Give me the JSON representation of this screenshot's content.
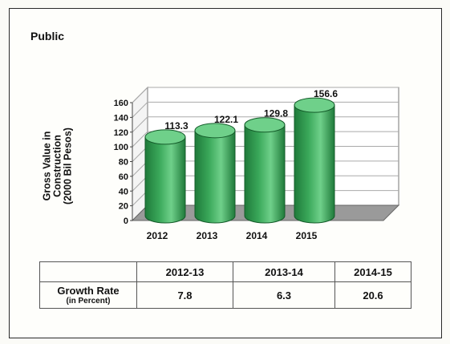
{
  "heading": "Public",
  "chart_data": {
    "type": "bar",
    "style": "3d-cylinder",
    "title": "",
    "ylabel": [
      "Gross Value in",
      "Construction",
      "(2000 Bil Pesos)"
    ],
    "xlabel": "",
    "categories": [
      "2012",
      "2013",
      "2014",
      "2015"
    ],
    "values": [
      113.3,
      122.1,
      129.8,
      156.6
    ],
    "value_labels": [
      "113.3",
      "122.1",
      "129.8",
      "156.6"
    ],
    "ylim": [
      0,
      160
    ],
    "yticks": [
      0,
      20,
      40,
      60,
      80,
      100,
      120,
      140,
      160
    ],
    "grid": true,
    "legend": "none",
    "colors": {
      "bar": "#3aa85a",
      "bar_dark": "#1f7a3a",
      "bar_top": "#6fd08a",
      "floor": "#9a9a9a",
      "grid": "#aaaaaa"
    }
  },
  "growth_table": {
    "periods": [
      "2012-13",
      "2013-14",
      "2014-15"
    ],
    "row_label": "Growth Rate",
    "row_sublabel": "(in Percent)",
    "values": [
      "7.8",
      "6.3",
      "20.6"
    ]
  }
}
